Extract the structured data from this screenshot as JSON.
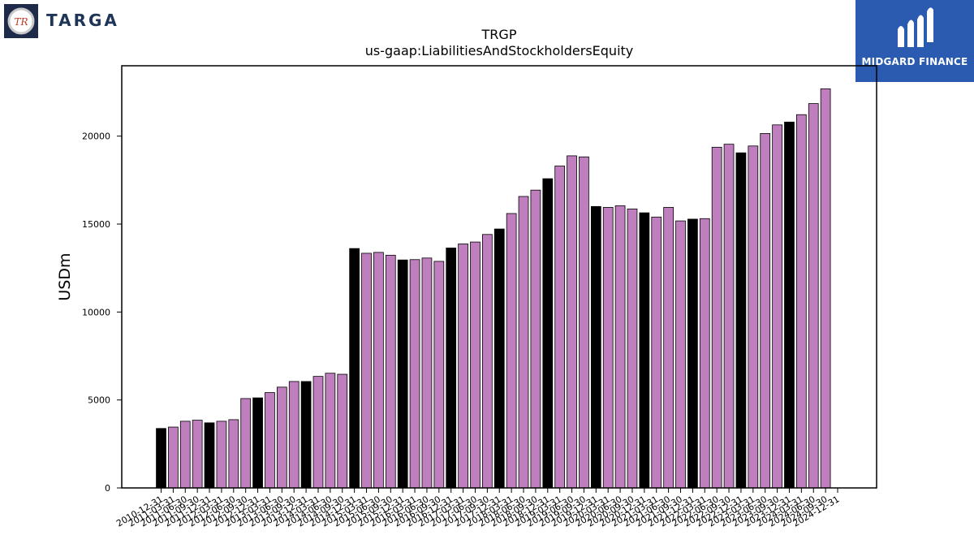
{
  "logos": {
    "left_wordmark": "TARGA",
    "right_name": "MIDGARD FINANCE"
  },
  "chart_data": {
    "type": "bar",
    "title": "TRGP",
    "subtitle": "us-gaap:LiabilitiesAndStockholdersEquity",
    "ylabel": "USDm",
    "xlabel": "",
    "ylim": [
      0,
      24000
    ],
    "yticks": [
      0,
      5000,
      10000,
      15000,
      20000
    ],
    "grid": false,
    "colors": {
      "annual": "#000000",
      "quarterly": "#bf7fbf",
      "edge": "#000000"
    },
    "categories": [
      "2010-12-31",
      "2011-03-31",
      "2011-06-30",
      "2011-09-30",
      "2011-12-31",
      "2012-03-31",
      "2012-06-30",
      "2012-09-30",
      "2012-12-31",
      "2013-03-31",
      "2013-06-30",
      "2013-09-30",
      "2013-12-31",
      "2014-03-31",
      "2014-06-30",
      "2014-09-30",
      "2014-12-31",
      "2015-03-31",
      "2015-06-30",
      "2015-09-30",
      "2015-12-31",
      "2016-03-31",
      "2016-06-30",
      "2016-09-30",
      "2016-12-31",
      "2017-03-31",
      "2017-06-30",
      "2017-09-30",
      "2017-12-31",
      "2018-03-31",
      "2018-06-30",
      "2018-09-30",
      "2018-12-31",
      "2019-03-31",
      "2019-06-30",
      "2019-09-30",
      "2019-12-31",
      "2020-03-31",
      "2020-06-30",
      "2020-09-30",
      "2020-12-31",
      "2021-03-31",
      "2021-06-30",
      "2021-09-30",
      "2021-12-31",
      "2022-03-31",
      "2022-06-30",
      "2022-09-30",
      "2022-12-31",
      "2023-03-31",
      "2023-06-30",
      "2023-09-30",
      "2023-12-31",
      "2024-03-31",
      "2024-06-30",
      "2024-09-30",
      "2024-12-31"
    ],
    "values": [
      3380,
      3460,
      3790,
      3850,
      3700,
      3790,
      3880,
      5080,
      5120,
      5420,
      5730,
      6050,
      6050,
      6340,
      6520,
      6460,
      13610,
      13340,
      13390,
      13230,
      12960,
      12980,
      13070,
      12880,
      13640,
      13870,
      13980,
      14410,
      14720,
      15600,
      16570,
      16930,
      17580,
      18300,
      18880,
      18820,
      16000,
      15950,
      16040,
      15860,
      15640,
      15400,
      15950,
      15180,
      15280,
      15310,
      19370,
      19540,
      19050,
      19440,
      20150,
      20640,
      20800,
      21220,
      21850,
      22690,
      0
    ],
    "annual_flags": [
      1,
      0,
      0,
      0,
      1,
      0,
      0,
      0,
      1,
      0,
      0,
      0,
      1,
      0,
      0,
      0,
      1,
      0,
      0,
      0,
      1,
      0,
      0,
      0,
      1,
      0,
      0,
      0,
      1,
      0,
      0,
      0,
      1,
      0,
      0,
      0,
      1,
      0,
      0,
      0,
      1,
      0,
      0,
      0,
      1,
      0,
      0,
      0,
      1,
      0,
      0,
      0,
      1,
      0,
      0,
      0,
      1
    ]
  }
}
